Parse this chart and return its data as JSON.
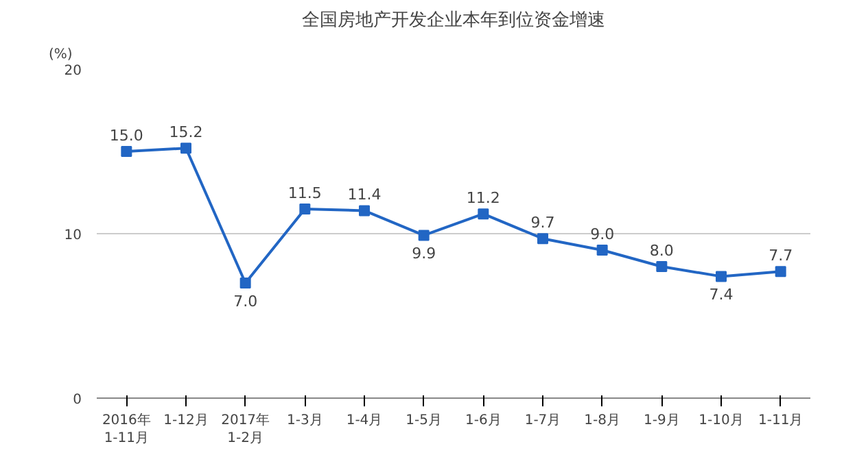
{
  "chart_data": {
    "type": "line",
    "title": "全国房地产开发企业本年到位资金增速",
    "ylabel": "(%)",
    "categories": [
      "2016年\n1-11月",
      "1-12月",
      "2017年\n1-2月",
      "1-3月",
      "1-4月",
      "1-5月",
      "1-6月",
      "1-7月",
      "1-8月",
      "1-9月",
      "1-10月",
      "1-11月"
    ],
    "series": [
      {
        "color": "#2266c4",
        "values": [
          15.0,
          15.2,
          7.0,
          11.5,
          11.4,
          9.9,
          11.2,
          9.7,
          9.0,
          8.0,
          7.4,
          7.7
        ],
        "value_labels": [
          "15.0",
          "15.2",
          "7.0",
          "11.5",
          "11.4",
          "9.9",
          "11.2",
          "9.7",
          "9.0",
          "8.0",
          "7.4",
          "7.7"
        ]
      }
    ],
    "ylim": [
      0,
      20
    ],
    "yticks": [
      0,
      10,
      20
    ],
    "grid": "y",
    "marker": "square",
    "line_style": "solid"
  }
}
